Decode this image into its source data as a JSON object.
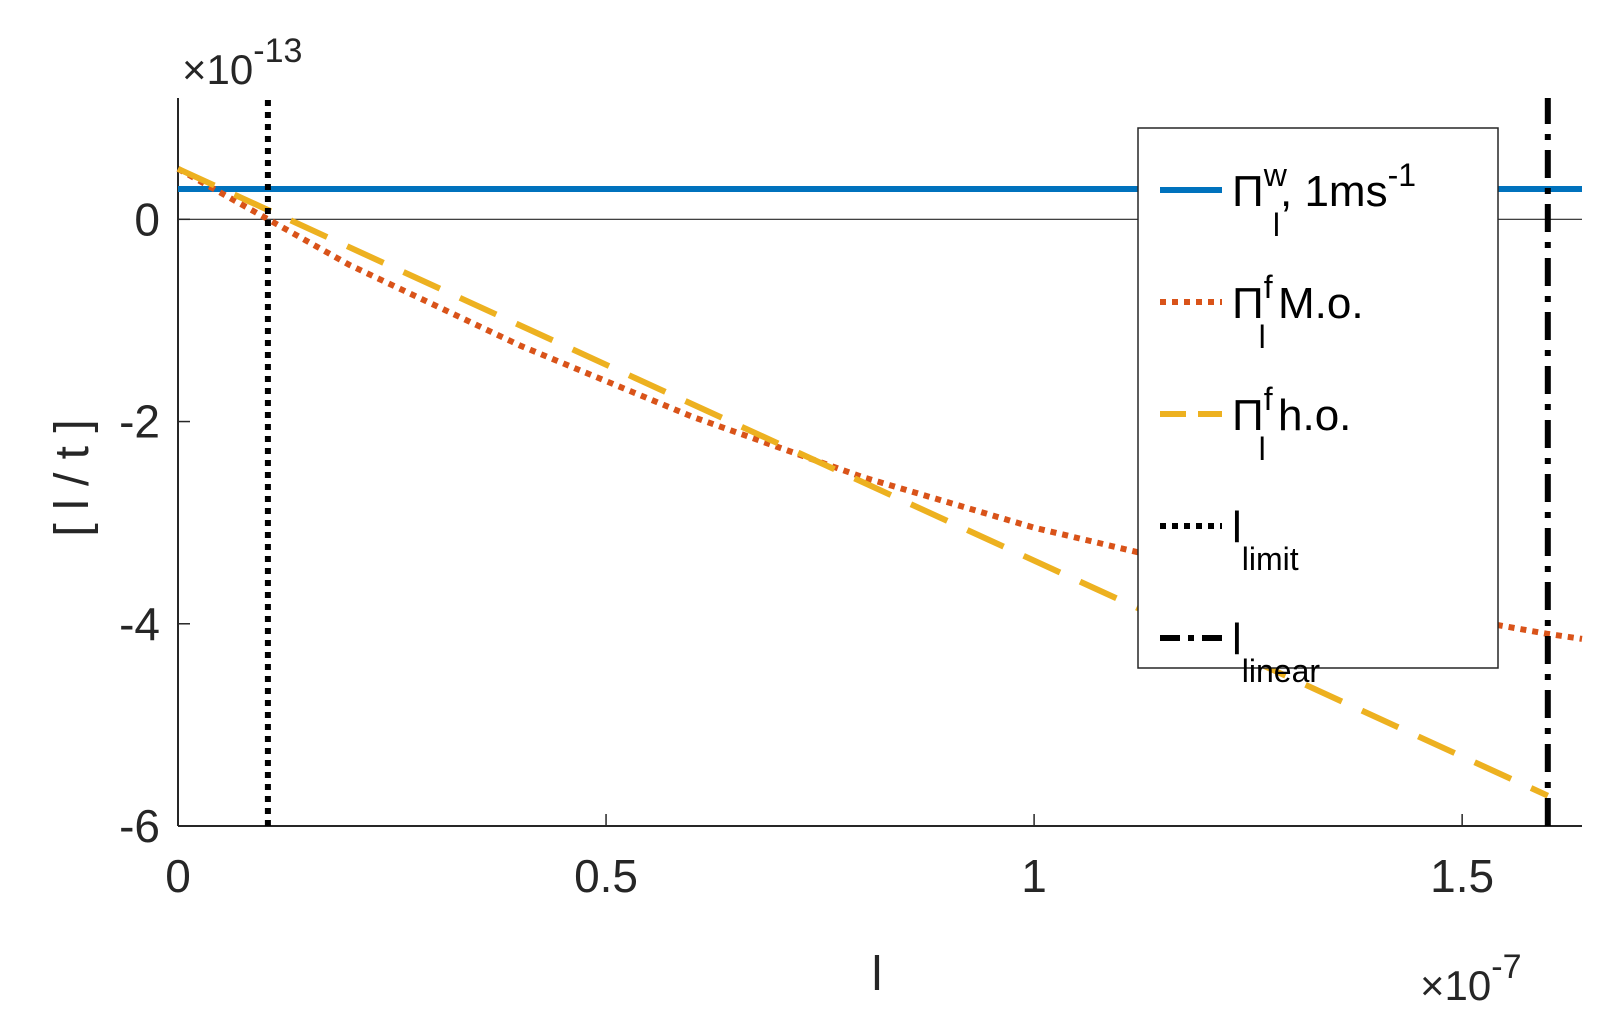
{
  "chart_data": {
    "type": "line",
    "xlabel": "l",
    "ylabel": "[ l / t ]",
    "x_multiplier": "×10",
    "x_exponent": "-7",
    "y_multiplier": "×10",
    "y_exponent": "-13",
    "xlim": [
      0,
      1.64
    ],
    "ylim": [
      -6,
      1.2
    ],
    "x_ticks": [
      0,
      0.5,
      1,
      1.5
    ],
    "x_tick_labels": [
      "0",
      "0.5",
      "1",
      "1.5"
    ],
    "y_ticks": [
      0,
      -2,
      -4,
      -6
    ],
    "y_tick_labels": [
      "0",
      "-2",
      "-4",
      "-6"
    ],
    "grid": false,
    "legend_position": "top-right",
    "series": [
      {
        "key": "pi_w",
        "legend": {
          "sym": "Π",
          "sub": "l",
          "sup": "w",
          "tail": ", 1ms",
          "tail_sup": "-1"
        },
        "color": "#0072BD",
        "style": "solid",
        "x": [
          0,
          1.64
        ],
        "y": [
          0.3,
          0.3
        ]
      },
      {
        "key": "pi_f_mo",
        "legend": {
          "sym": "Π",
          "sub": "l",
          "sup": "f",
          "tail": " M.o.",
          "tail_sup": ""
        },
        "color": "#D95319",
        "style": "dotted",
        "x": [
          0,
          0.2,
          0.4,
          0.6,
          0.8,
          1.0,
          1.2,
          1.4,
          1.6,
          1.64
        ],
        "y": [
          0.5,
          -0.45,
          -1.25,
          -1.95,
          -2.55,
          -3.05,
          -3.45,
          -3.8,
          -4.1,
          -4.15
        ]
      },
      {
        "key": "pi_f_ho",
        "legend": {
          "sym": "Π",
          "sub": "l",
          "sup": "f",
          "tail": " h.o.",
          "tail_sup": ""
        },
        "color": "#EDB120",
        "style": "dashed",
        "x": [
          0,
          1.6
        ],
        "y": [
          0.5,
          -5.7
        ]
      },
      {
        "key": "l_limit",
        "legend": {
          "sym": "l",
          "sub": "limit",
          "sup": "",
          "tail": "",
          "tail_sup": ""
        },
        "color": "#000000",
        "style": "dotted",
        "x": [
          0.105,
          0.105
        ],
        "y": [
          -6,
          1.2
        ]
      },
      {
        "key": "l_linear",
        "legend": {
          "sym": "l",
          "sub": "linear",
          "sup": "",
          "tail": "",
          "tail_sup": ""
        },
        "color": "#000000",
        "style": "dashdot",
        "x": [
          1.6,
          1.6
        ],
        "y": [
          -6,
          1.2
        ]
      }
    ]
  }
}
